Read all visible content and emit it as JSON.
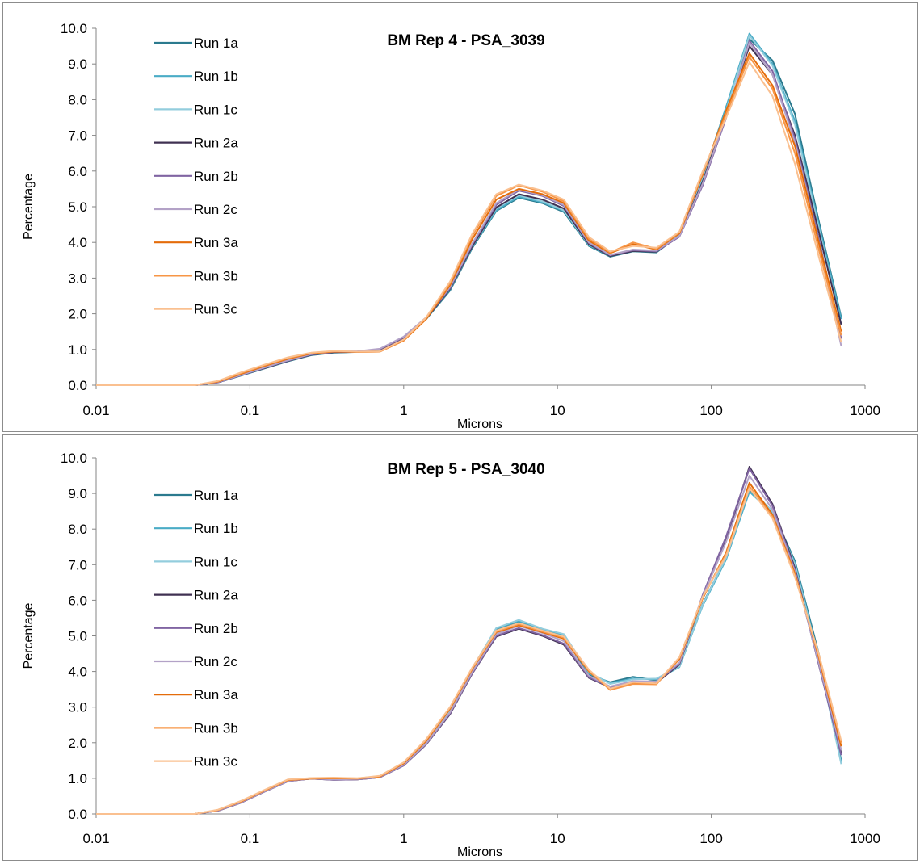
{
  "colors": {
    "run_1a": "#2b7a8e",
    "run_1b": "#4aacc6",
    "run_1c": "#93cddd",
    "run_2a": "#403152",
    "run_2b": "#8064a2",
    "run_2c": "#b3a2c7",
    "run_3a": "#e46c0a",
    "run_3b": "#f79646",
    "run_3c": "#fac090",
    "axis": "#868686",
    "text": "#000000"
  },
  "chart_data": [
    {
      "type": "line",
      "title": "BM Rep 4 - PSA_3039",
      "xlabel": "Microns",
      "ylabel": "Percentage",
      "xscale": "log",
      "xlim": [
        0.01,
        1000
      ],
      "ylim": [
        0,
        10
      ],
      "x_ticks": [
        "0.01",
        "0.1",
        "1",
        "10",
        "100",
        "1000"
      ],
      "y_ticks": [
        "0.0",
        "1.0",
        "2.0",
        "3.0",
        "4.0",
        "5.0",
        "6.0",
        "7.0",
        "8.0",
        "9.0",
        "10.0"
      ],
      "grid": false,
      "legend_position": "left",
      "x": [
        0.01,
        0.015,
        0.02,
        0.03,
        0.044,
        0.062,
        0.088,
        0.125,
        0.177,
        0.25,
        0.35,
        0.5,
        0.7,
        1.0,
        1.4,
        2.0,
        2.8,
        4.0,
        5.6,
        8.0,
        11.0,
        16.0,
        22.0,
        31.0,
        44.0,
        62.0,
        88.0,
        125.0,
        177.0,
        250.0,
        350.0,
        500.0,
        700.0
      ],
      "series": [
        {
          "name": "Run 1a",
          "values": [
            0.0,
            0.0,
            0.0,
            0.0,
            0.0,
            0.08,
            0.27,
            0.47,
            0.67,
            0.84,
            0.91,
            0.93,
            0.99,
            1.33,
            1.85,
            2.65,
            3.85,
            4.88,
            5.25,
            5.1,
            4.85,
            3.9,
            3.6,
            3.75,
            3.72,
            4.2,
            5.8,
            7.8,
            9.7,
            9.1,
            7.6,
            4.6,
            1.9
          ]
        },
        {
          "name": "Run 1b",
          "values": [
            0.0,
            0.0,
            0.0,
            0.0,
            0.0,
            0.08,
            0.28,
            0.48,
            0.68,
            0.85,
            0.92,
            0.93,
            1.0,
            1.34,
            1.86,
            2.68,
            3.88,
            4.9,
            5.28,
            5.12,
            4.88,
            3.92,
            3.62,
            3.77,
            3.74,
            4.2,
            5.8,
            7.8,
            9.85,
            9.0,
            7.4,
            4.5,
            1.85
          ]
        },
        {
          "name": "Run 1c",
          "values": [
            0.0,
            0.0,
            0.0,
            0.0,
            0.0,
            0.09,
            0.29,
            0.49,
            0.69,
            0.86,
            0.93,
            0.94,
            1.01,
            1.35,
            1.88,
            2.7,
            3.9,
            4.95,
            5.32,
            5.15,
            4.9,
            3.94,
            3.64,
            3.78,
            3.76,
            4.22,
            5.85,
            7.7,
            9.8,
            8.95,
            7.3,
            4.4,
            1.7
          ]
        },
        {
          "name": "Run 2a",
          "values": [
            0.0,
            0.0,
            0.0,
            0.0,
            0.0,
            0.08,
            0.28,
            0.48,
            0.68,
            0.85,
            0.92,
            0.93,
            1.0,
            1.32,
            1.86,
            2.7,
            3.9,
            4.98,
            5.35,
            5.2,
            4.95,
            3.95,
            3.62,
            3.76,
            3.74,
            4.18,
            5.7,
            7.6,
            9.5,
            8.7,
            7.0,
            4.3,
            1.7
          ]
        },
        {
          "name": "Run 2b",
          "values": [
            0.0,
            0.0,
            0.0,
            0.0,
            0.0,
            0.08,
            0.28,
            0.49,
            0.69,
            0.86,
            0.93,
            0.94,
            1.01,
            1.34,
            1.88,
            2.72,
            3.95,
            5.05,
            5.45,
            5.3,
            5.02,
            3.98,
            3.64,
            3.78,
            3.75,
            4.16,
            5.6,
            7.5,
            9.65,
            8.8,
            6.9,
            4.1,
            1.3
          ]
        },
        {
          "name": "Run 2c",
          "values": [
            0.0,
            0.0,
            0.0,
            0.0,
            0.0,
            0.09,
            0.29,
            0.5,
            0.7,
            0.87,
            0.94,
            0.95,
            1.02,
            1.36,
            1.9,
            2.75,
            3.98,
            5.1,
            5.48,
            5.32,
            5.05,
            4.0,
            3.65,
            3.8,
            3.77,
            4.18,
            5.65,
            7.55,
            9.6,
            8.7,
            6.8,
            4.0,
            1.1
          ]
        },
        {
          "name": "Run 3a",
          "values": [
            0.0,
            0.0,
            0.0,
            0.0,
            0.0,
            0.1,
            0.32,
            0.54,
            0.74,
            0.89,
            0.94,
            0.93,
            0.94,
            1.25,
            1.85,
            2.8,
            4.1,
            5.2,
            5.5,
            5.35,
            5.1,
            4.05,
            3.7,
            3.95,
            3.8,
            4.25,
            5.9,
            7.7,
            9.3,
            8.4,
            6.7,
            4.0,
            1.5
          ]
        },
        {
          "name": "Run 3b",
          "values": [
            0.0,
            0.0,
            0.0,
            0.0,
            0.0,
            0.11,
            0.34,
            0.56,
            0.76,
            0.9,
            0.95,
            0.93,
            0.94,
            1.26,
            1.88,
            2.85,
            4.2,
            5.3,
            5.6,
            5.42,
            5.15,
            4.1,
            3.72,
            4.0,
            3.82,
            4.28,
            5.95,
            7.6,
            9.2,
            8.3,
            6.5,
            3.8,
            1.4
          ]
        },
        {
          "name": "Run 3c",
          "values": [
            0.0,
            0.0,
            0.0,
            0.0,
            0.0,
            0.12,
            0.36,
            0.58,
            0.78,
            0.91,
            0.96,
            0.94,
            0.95,
            1.28,
            1.9,
            2.9,
            4.25,
            5.35,
            5.62,
            5.45,
            5.2,
            4.15,
            3.75,
            3.9,
            3.85,
            4.3,
            6.0,
            7.5,
            9.05,
            8.1,
            6.2,
            3.6,
            1.2
          ]
        }
      ]
    },
    {
      "type": "line",
      "title": "BM Rep 5 - PSA_3040",
      "xlabel": "Microns",
      "ylabel": "Percentage",
      "xscale": "log",
      "xlim": [
        0.01,
        1000
      ],
      "ylim": [
        0,
        10
      ],
      "x_ticks": [
        "0.01",
        "0.1",
        "1",
        "10",
        "100",
        "1000"
      ],
      "y_ticks": [
        "0.0",
        "1.0",
        "2.0",
        "3.0",
        "4.0",
        "5.0",
        "6.0",
        "7.0",
        "8.0",
        "9.0",
        "10.0"
      ],
      "grid": false,
      "legend_position": "left",
      "x": [
        0.01,
        0.015,
        0.02,
        0.03,
        0.044,
        0.062,
        0.088,
        0.125,
        0.177,
        0.25,
        0.35,
        0.5,
        0.7,
        1.0,
        1.4,
        2.0,
        2.8,
        4.0,
        5.6,
        8.0,
        11.0,
        16.0,
        22.0,
        31.0,
        44.0,
        62.0,
        88.0,
        125.0,
        177.0,
        250.0,
        350.0,
        500.0,
        700.0
      ],
      "series": [
        {
          "name": "Run 1a",
          "values": [
            0.0,
            0.0,
            0.0,
            0.0,
            0.0,
            0.1,
            0.33,
            0.64,
            0.93,
            1.0,
            0.97,
            0.98,
            1.04,
            1.38,
            2.0,
            2.9,
            4.05,
            5.18,
            5.38,
            5.15,
            5.0,
            3.9,
            3.7,
            3.85,
            3.75,
            4.15,
            5.9,
            7.2,
            9.1,
            8.5,
            7.1,
            4.5,
            1.5
          ]
        },
        {
          "name": "Run 1b",
          "values": [
            0.0,
            0.0,
            0.0,
            0.0,
            0.0,
            0.1,
            0.33,
            0.64,
            0.93,
            1.0,
            0.97,
            0.98,
            1.04,
            1.38,
            2.0,
            2.9,
            4.08,
            5.2,
            5.42,
            5.18,
            5.02,
            3.95,
            3.68,
            3.8,
            3.78,
            4.12,
            5.85,
            7.15,
            9.05,
            8.45,
            7.05,
            4.4,
            1.45
          ]
        },
        {
          "name": "Run 1c",
          "values": [
            0.0,
            0.0,
            0.0,
            0.0,
            0.0,
            0.1,
            0.34,
            0.65,
            0.94,
            1.01,
            0.98,
            0.99,
            1.05,
            1.4,
            2.02,
            2.92,
            4.1,
            5.22,
            5.45,
            5.2,
            5.05,
            3.98,
            3.65,
            3.78,
            3.8,
            4.14,
            5.88,
            7.2,
            9.15,
            8.5,
            7.0,
            4.35,
            1.4
          ]
        },
        {
          "name": "Run 2a",
          "values": [
            0.0,
            0.0,
            0.0,
            0.0,
            0.0,
            0.09,
            0.32,
            0.63,
            0.92,
            0.99,
            0.96,
            0.97,
            1.03,
            1.36,
            1.95,
            2.8,
            3.95,
            4.98,
            5.2,
            5.0,
            4.75,
            3.82,
            3.55,
            3.7,
            3.68,
            4.2,
            6.1,
            7.7,
            9.75,
            8.7,
            6.9,
            4.2,
            1.7
          ]
        },
        {
          "name": "Run 2b",
          "values": [
            0.0,
            0.0,
            0.0,
            0.0,
            0.0,
            0.09,
            0.32,
            0.63,
            0.92,
            0.99,
            0.96,
            0.97,
            1.03,
            1.36,
            1.96,
            2.82,
            3.96,
            5.0,
            5.22,
            5.02,
            4.78,
            3.84,
            3.56,
            3.72,
            3.7,
            4.22,
            6.15,
            7.8,
            9.7,
            8.65,
            6.85,
            4.2,
            1.65
          ]
        },
        {
          "name": "Run 2c",
          "values": [
            0.0,
            0.0,
            0.0,
            0.0,
            0.0,
            0.1,
            0.33,
            0.64,
            0.93,
            1.0,
            0.97,
            0.98,
            1.04,
            1.38,
            1.98,
            2.85,
            4.0,
            5.05,
            5.28,
            5.08,
            4.85,
            3.88,
            3.58,
            3.73,
            3.72,
            4.25,
            6.1,
            7.65,
            9.5,
            8.55,
            6.8,
            4.25,
            1.8
          ]
        },
        {
          "name": "Run 3a",
          "values": [
            0.0,
            0.0,
            0.0,
            0.0,
            0.0,
            0.11,
            0.35,
            0.66,
            0.95,
            0.99,
            1.0,
            0.99,
            1.05,
            1.42,
            2.05,
            2.95,
            4.08,
            5.1,
            5.3,
            5.1,
            4.92,
            4.0,
            3.5,
            3.68,
            3.66,
            4.35,
            6.05,
            7.35,
            9.3,
            8.4,
            6.75,
            4.4,
            1.9
          ]
        },
        {
          "name": "Run 3b",
          "values": [
            0.0,
            0.0,
            0.0,
            0.0,
            0.0,
            0.11,
            0.36,
            0.67,
            0.96,
            1.0,
            1.01,
            1.0,
            1.06,
            1.44,
            2.08,
            2.98,
            4.1,
            5.12,
            5.33,
            5.12,
            4.95,
            4.02,
            3.48,
            3.65,
            3.64,
            4.38,
            6.08,
            7.3,
            9.2,
            8.35,
            6.7,
            4.45,
            2.0
          ]
        },
        {
          "name": "Run 3c",
          "values": [
            0.0,
            0.0,
            0.0,
            0.0,
            0.0,
            0.12,
            0.37,
            0.68,
            0.97,
            1.01,
            1.02,
            1.0,
            1.07,
            1.45,
            2.1,
            3.0,
            4.12,
            5.15,
            5.36,
            5.15,
            4.98,
            4.05,
            3.52,
            3.7,
            3.67,
            4.4,
            6.1,
            7.25,
            9.15,
            8.3,
            6.65,
            4.5,
            2.05
          ]
        }
      ]
    }
  ]
}
